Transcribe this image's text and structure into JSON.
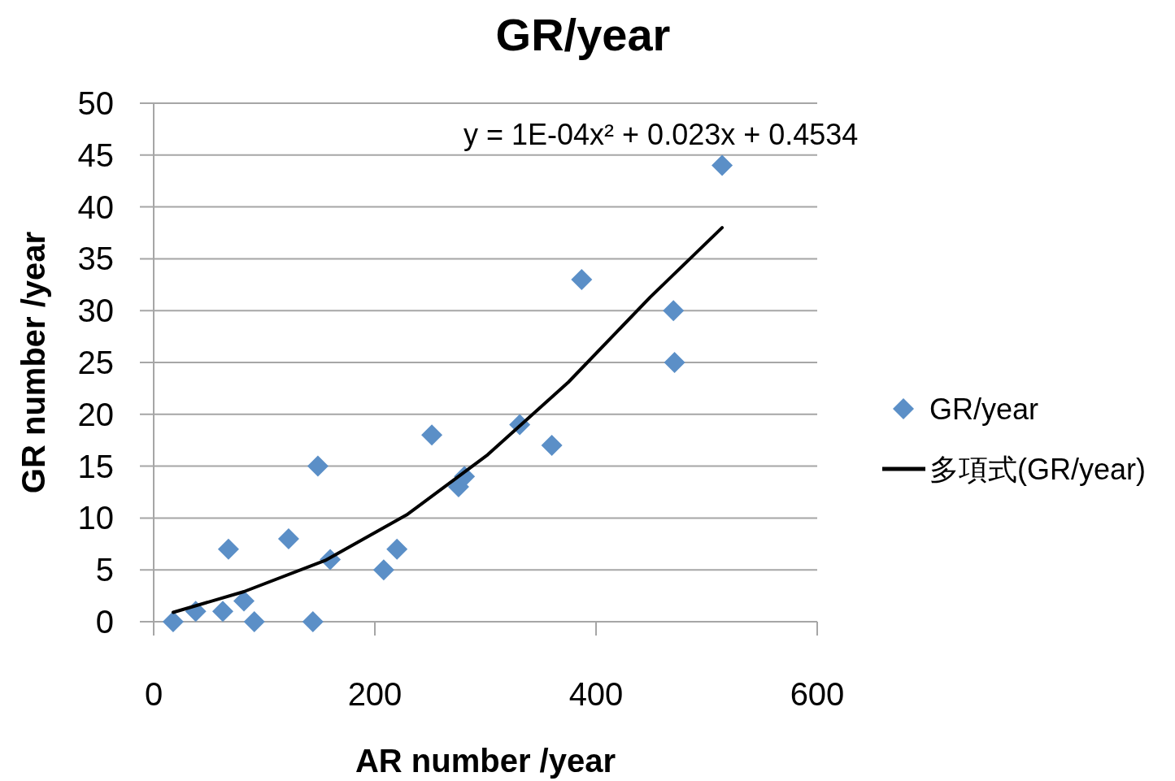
{
  "chart_data": {
    "type": "scatter",
    "title": "GR/year",
    "xlabel": "AR number /year",
    "ylabel": "GR number /year",
    "xlim": [
      0,
      600
    ],
    "xticks": [
      0,
      200,
      400,
      600
    ],
    "ylim": [
      0,
      50
    ],
    "yticks": [
      0,
      5,
      10,
      15,
      20,
      25,
      30,
      35,
      40,
      45,
      50
    ],
    "grid": "y",
    "legend": "right",
    "annotations": [
      "y = 1E-04x² + 0.023x + 0.4534"
    ],
    "series": [
      {
        "type": "scatter",
        "name": "GR/year",
        "color": "#5b8fc7",
        "marker": "diamond",
        "x": [
          17.6,
          38,
          62.5,
          67.6,
          81.6,
          91,
          122,
          144,
          148.5,
          159.6,
          208,
          220,
          251.5,
          275.7,
          281,
          331,
          360,
          387,
          470,
          471,
          514
        ],
        "values": [
          0,
          1,
          1,
          7,
          2,
          0,
          8,
          0,
          15,
          6,
          5,
          7,
          18,
          13,
          14,
          19,
          17,
          33,
          30,
          25,
          44
        ]
      },
      {
        "type": "line",
        "name": "多項式(GR/year)",
        "color": "#000000",
        "marker": "none",
        "line_style": "solid",
        "x": [
          17.6,
          81.6,
          155,
          228.7,
          302,
          375,
          449,
          514
        ],
        "values": [
          0.9,
          2.9,
          5.9,
          10.3,
          16.1,
          23.1,
          31.3,
          38
        ]
      }
    ]
  }
}
